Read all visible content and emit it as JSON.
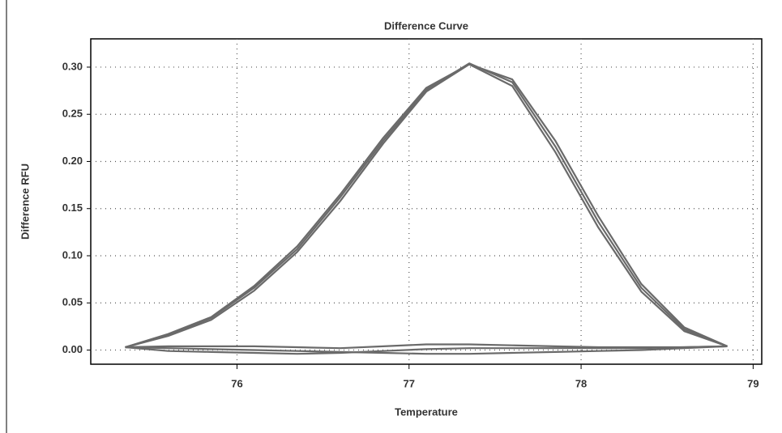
{
  "chart_data": {
    "type": "line",
    "title": "Difference Curve",
    "x_label": "Temperature",
    "y_label": "Difference RFU",
    "x": [
      75.35,
      75.6,
      75.85,
      76.1,
      76.35,
      76.6,
      76.85,
      77.1,
      77.35,
      77.6,
      77.85,
      78.1,
      78.35,
      78.6,
      78.85
    ],
    "series": [
      {
        "color": "#6a6a6a",
        "values": [
          0.003,
          0.017,
          0.035,
          0.068,
          0.11,
          0.165,
          0.225,
          0.278,
          0.303,
          0.28,
          0.21,
          0.13,
          0.062,
          0.02,
          0.004
        ]
      },
      {
        "color": "#6a6a6a",
        "values": [
          0.003,
          0.015,
          0.032,
          0.063,
          0.104,
          0.158,
          0.219,
          0.274,
          0.303,
          0.287,
          0.222,
          0.142,
          0.07,
          0.024,
          0.004
        ]
      },
      {
        "color": "#6a6a6a",
        "values": [
          0.003,
          0.016,
          0.034,
          0.066,
          0.107,
          0.162,
          0.222,
          0.276,
          0.304,
          0.284,
          0.216,
          0.136,
          0.066,
          0.022,
          0.004
        ]
      },
      {
        "color": "#6a6a6a",
        "values": [
          0.003,
          -0.001,
          -0.002,
          -0.003,
          -0.004,
          -0.003,
          -0.001,
          0.001,
          0.002,
          0.002,
          0.002,
          0.002,
          0.002,
          0.003,
          0.004
        ]
      },
      {
        "color": "#6a6a6a",
        "values": [
          0.003,
          0.002,
          0.001,
          0.0,
          -0.001,
          -0.002,
          -0.003,
          -0.004,
          -0.004,
          -0.003,
          -0.002,
          -0.001,
          0.0,
          0.002,
          0.004
        ]
      },
      {
        "color": "#6a6a6a",
        "values": [
          0.003,
          0.004,
          0.004,
          0.004,
          0.003,
          0.002,
          0.004,
          0.006,
          0.006,
          0.005,
          0.004,
          0.003,
          0.003,
          0.003,
          0.004
        ]
      }
    ],
    "xlim": [
      75.15,
      79.05
    ],
    "xticks": [
      76,
      77,
      78,
      79
    ],
    "ylim": [
      -0.015,
      0.33
    ],
    "yticks": [
      {
        "value": 0,
        "label": "0.00"
      },
      {
        "value": 0.05,
        "label": "0.05"
      },
      {
        "value": 0.1,
        "label": "0.10"
      },
      {
        "value": 0.15,
        "label": "0.15"
      },
      {
        "value": 0.2,
        "label": "0.20"
      },
      {
        "value": 0.25,
        "label": "0.25"
      },
      {
        "value": 0.3,
        "label": "0.30"
      }
    ],
    "grid": true
  }
}
